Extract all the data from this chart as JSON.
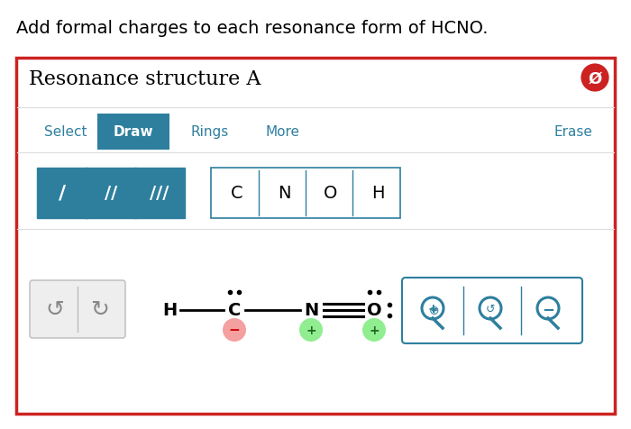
{
  "title": "Add formal charges to each resonance form of HCNO.",
  "title_fontsize": 14,
  "bg_color": "#ffffff",
  "outer_border_color": "#cc2222",
  "panel_bg": "#ffffff",
  "panel_title": "Resonance structure A",
  "panel_title_fontsize": 16,
  "toolbar_items": [
    "Select",
    "Draw",
    "Rings",
    "More",
    "Erase"
  ],
  "toolbar_active": "Draw",
  "toolbar_active_color": "#2e7f9e",
  "toolbar_text_color": "#2e7f9e",
  "bond_syms": [
    "/",
    "//",
    "///"
  ],
  "atom_buttons": [
    "C",
    "N",
    "O",
    "H"
  ],
  "button_bg_teal": "#2e7f9e",
  "button_border": "#2e7f9e",
  "c_charge": "−",
  "c_charge_color": "#f4a0a0",
  "n_charge": "+",
  "n_charge_color": "#90ee90",
  "o_charge": "+",
  "o_charge_color": "#90ee90",
  "zoom_box_color": "#2e7f9e",
  "undo_bg": "#eeeeee",
  "undo_border": "#bbbbbb",
  "undo_icon_color": "#888888"
}
